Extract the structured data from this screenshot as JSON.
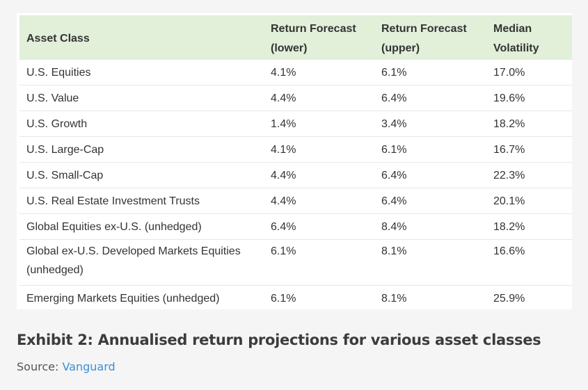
{
  "table": {
    "headers": [
      {
        "line1": "Asset Class",
        "line2": ""
      },
      {
        "line1": "Return Forecast",
        "line2": "(lower)"
      },
      {
        "line1": "Return Forecast",
        "line2": "(upper)"
      },
      {
        "line1": "Median",
        "line2": "Volatility"
      }
    ],
    "rows": [
      {
        "asset": "U.S. Equities",
        "lower": "4.1%",
        "upper": "6.1%",
        "volatility": "17.0%"
      },
      {
        "asset": "U.S. Value",
        "lower": "4.4%",
        "upper": "6.4%",
        "volatility": "19.6%"
      },
      {
        "asset": "U.S. Growth",
        "lower": "1.4%",
        "upper": "3.4%",
        "volatility": "18.2%"
      },
      {
        "asset": "U.S. Large-Cap",
        "lower": "4.1%",
        "upper": "6.1%",
        "volatility": "16.7%"
      },
      {
        "asset": "U.S. Small-Cap",
        "lower": "4.4%",
        "upper": "6.4%",
        "volatility": "22.3%"
      },
      {
        "asset": "U.S. Real Estate Investment Trusts",
        "lower": "4.4%",
        "upper": "6.4%",
        "volatility": "20.1%"
      },
      {
        "asset": "Global Equities ex-U.S. (unhedged)",
        "lower": "6.4%",
        "upper": "8.4%",
        "volatility": "18.2%"
      },
      {
        "asset": "Global ex-U.S. Developed Markets Equities (unhedged)",
        "lower": "6.1%",
        "upper": "8.1%",
        "volatility": "16.6%"
      },
      {
        "asset": "Emerging Markets Equities (unhedged)",
        "lower": "6.1%",
        "upper": "8.1%",
        "volatility": "25.9%"
      }
    ]
  },
  "caption": {
    "title": "Exhibit 2: Annualised return projections for various asset classes",
    "source_label": "Source:",
    "source_link": "Vanguard"
  },
  "colors": {
    "header_bg": "#e2efd9",
    "link": "#3a8ed8"
  }
}
